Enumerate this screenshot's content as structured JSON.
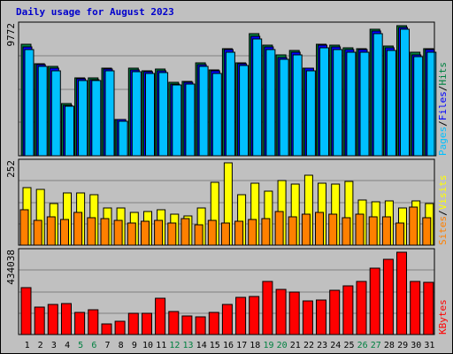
{
  "title": "Daily usage for August 2023",
  "chart_data": {
    "type": "bar",
    "categories": [
      "1",
      "2",
      "3",
      "4",
      "5",
      "6",
      "7",
      "8",
      "9",
      "10",
      "11",
      "12",
      "13",
      "14",
      "15",
      "16",
      "17",
      "18",
      "19",
      "20",
      "21",
      "22",
      "23",
      "24",
      "25",
      "26",
      "27",
      "28",
      "29",
      "30",
      "31"
    ],
    "weekend_categories": [
      "5",
      "6",
      "12",
      "13",
      "19",
      "20",
      "26",
      "27"
    ],
    "panels": [
      {
        "id": "traffic",
        "max_label": "9772",
        "ymax": 9772,
        "series": [
          {
            "name": "Hits",
            "color": "#008040",
            "values": [
              8350,
              6900,
              6700,
              3900,
              5850,
              5850,
              6600,
              2750,
              6550,
              6400,
              6500,
              5500,
              5600,
              7000,
              6450,
              8050,
              7000,
              9150,
              8300,
              7550,
              7900,
              6600,
              8400,
              8300,
              8100,
              8050,
              9500,
              8250,
              9772,
              7750,
              8050
            ]
          },
          {
            "name": "Files",
            "color": "#0000ff",
            "values": [
              8200,
              6850,
              6550,
              3800,
              5800,
              5750,
              6500,
              2700,
              6450,
              6300,
              6400,
              5400,
              5550,
              6850,
              6350,
              7950,
              6900,
              8950,
              8200,
              7400,
              7750,
              6550,
              8300,
              8200,
              8000,
              7950,
              9350,
              8100,
              9650,
              7600,
              7950
            ]
          },
          {
            "name": "Pages",
            "color": "#00c0ff",
            "values": [
              8000,
              6700,
              6400,
              3700,
              5650,
              5650,
              6400,
              2600,
              6300,
              6200,
              6250,
              5300,
              5400,
              6700,
              6200,
              7750,
              6750,
              8800,
              8000,
              7250,
              7600,
              6400,
              8100,
              8000,
              7800,
              7750,
              9150,
              7900,
              9500,
              7450,
              7750
            ]
          }
        ]
      },
      {
        "id": "visits",
        "max_label": "252",
        "ymax": 252,
        "series": [
          {
            "name": "Visits",
            "color": "#ffff00",
            "values": [
              176,
              171,
              126,
              160,
              161,
              154,
              115,
              115,
              100,
              104,
              108,
              96,
              89,
              114,
              193,
              252,
              154,
              190,
              164,
              197,
              186,
              214,
              191,
              187,
              196,
              138,
              132,
              136,
              114,
              135,
              127
            ]
          },
          {
            "name": "Sites",
            "color": "#ff8000",
            "values": [
              108,
              77,
              86,
              79,
              100,
              85,
              80,
              77,
              69,
              74,
              76,
              68,
              81,
              62,
              76,
              69,
              72,
              79,
              80,
              104,
              88,
              96,
              100,
              96,
              84,
              95,
              88,
              86,
              67,
              117,
              85
            ]
          }
        ]
      },
      {
        "id": "kbytes",
        "max_label": "434038",
        "ymax": 434038,
        "series": [
          {
            "name": "KBytes",
            "color": "#ff0000",
            "values": [
              247000,
              147000,
              157000,
              163000,
              116000,
              130000,
              57000,
              71000,
              114000,
              114000,
              193000,
              120000,
              96000,
              92000,
              118000,
              160000,
              194000,
              199000,
              280000,
              240000,
              225000,
              178000,
              182000,
              233000,
              255000,
              278000,
              351000,
              399000,
              434038,
              280000,
              276000
            ]
          }
        ]
      }
    ],
    "right_labels": [
      {
        "panel": "traffic",
        "parts": [
          {
            "text": "Pages",
            "color": "#00c0ff"
          },
          {
            "text": "/",
            "color": "#000000"
          },
          {
            "text": "Files",
            "color": "#0000ff"
          },
          {
            "text": "/",
            "color": "#000000"
          },
          {
            "text": "Hits",
            "color": "#008040"
          }
        ]
      },
      {
        "panel": "visits",
        "parts": [
          {
            "text": "Sites",
            "color": "#ff8000"
          },
          {
            "text": "/",
            "color": "#000000"
          },
          {
            "text": "Visits",
            "color": "#ffff00"
          }
        ]
      },
      {
        "panel": "kbytes",
        "parts": [
          {
            "text": "KBytes",
            "color": "#ff0000"
          }
        ]
      }
    ],
    "weekday_label_color": "#000000",
    "weekend_label_color": "#008040"
  }
}
